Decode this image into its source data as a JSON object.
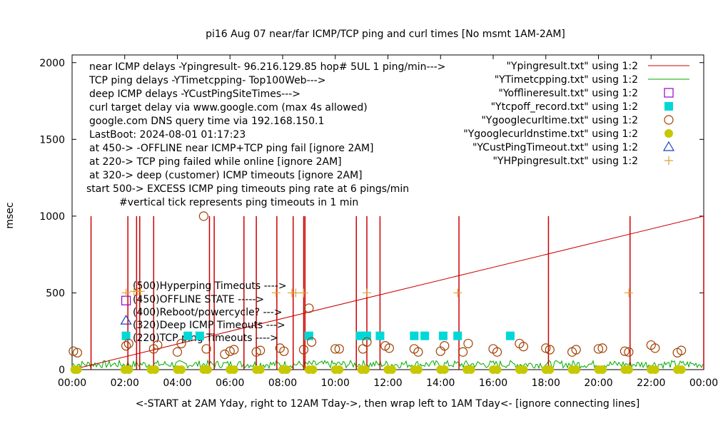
{
  "chart_data": {
    "type": "line",
    "title": "pi16 Aug 07  near/far ICMP/TCP ping and curl times [No msmt 1AM-2AM]",
    "ylabel": "msec",
    "xlabel": "<-START at 2AM Yday, right to 12AM Tday->, then wrap left to 1AM Tday<- [ignore connecting lines]",
    "xlim": [
      0,
      24
    ],
    "ylim": [
      0,
      2050
    ],
    "x_ticks": [
      {
        "v": 0,
        "label": "00:00"
      },
      {
        "v": 2,
        "label": "02:00"
      },
      {
        "v": 4,
        "label": "04:00"
      },
      {
        "v": 6,
        "label": "06:00"
      },
      {
        "v": 8,
        "label": "08:00"
      },
      {
        "v": 10,
        "label": "10:00"
      },
      {
        "v": 12,
        "label": "12:00"
      },
      {
        "v": 14,
        "label": "14:00"
      },
      {
        "v": 16,
        "label": "16:00"
      },
      {
        "v": 18,
        "label": "18:00"
      },
      {
        "v": 20,
        "label": "20:00"
      },
      {
        "v": 22,
        "label": "22:00"
      },
      {
        "v": 24,
        "label": "00:00"
      }
    ],
    "y_ticks": [
      {
        "v": 0,
        "label": "0"
      },
      {
        "v": 500,
        "label": "500"
      },
      {
        "v": 1000,
        "label": "1000"
      },
      {
        "v": 1500,
        "label": "1500"
      },
      {
        "v": 2000,
        "label": "2000"
      }
    ],
    "info_lines": [
      "near ICMP delays -Ypingresult- 96.216.129.85 hop# 5UL 1 ping/min--->",
      "TCP ping delays -YTimetcpping- Top100Web--->",
      "deep ICMP delays -YCustPingSiteTimes--->",
      "curl target delay via www.google.com (max 4s allowed)",
      "google.com DNS query time via 192.168.150.1",
      "LastBoot: 2024-08-01 01:17:23",
      "at 450-> -OFFLINE near ICMP+TCP ping fail [ignore 2AM]",
      "at 220-> TCP ping failed while online [ignore 2AM]",
      "at 320-> deep (customer) ICMP timeouts [ignore 2AM]",
      "start 500-> EXCESS ICMP ping timeouts ping rate at 6 pings/min",
      "#vertical tick represents ping timeouts in 1 min"
    ],
    "marker_labels": [
      "(500)Hyperping Timeouts ---->",
      "(450)OFFLINE STATE ----->",
      "(400)Reboot/powercycle? --->",
      "(320)Deep ICMP Timeouts --->",
      "(220)TCP ping Timeouts ---->"
    ],
    "legend_position": "top-right",
    "series": [
      {
        "name": "\"Ypingresult.txt\" using 1:2",
        "color": "#cc0000",
        "style": "line",
        "trend": [
          [
            0,
            0
          ],
          [
            24,
            1000
          ]
        ],
        "spikes": [
          [
            0.72,
            1000
          ],
          [
            2.12,
            1000
          ],
          [
            2.45,
            1000
          ],
          [
            2.57,
            1000
          ],
          [
            3.1,
            1000
          ],
          [
            5.22,
            1000
          ],
          [
            5.4,
            1000
          ],
          [
            6.53,
            1000
          ],
          [
            7.0,
            1000
          ],
          [
            7.78,
            1000
          ],
          [
            8.4,
            1000
          ],
          [
            8.8,
            1000
          ],
          [
            8.85,
            1000
          ],
          [
            10.8,
            1000
          ],
          [
            11.2,
            1000
          ],
          [
            11.7,
            1000
          ],
          [
            14.7,
            1000
          ],
          [
            18.1,
            1000
          ],
          [
            21.2,
            1000
          ],
          [
            24,
            1000
          ]
        ]
      },
      {
        "name": "\"YTimetcpping.txt\" using 1:2",
        "color": "#00aa00",
        "style": "line",
        "baseline": [
          10,
          60
        ]
      },
      {
        "name": "\"Yofflineresult.txt\" using 1:2",
        "color": "#9400d3",
        "style": "square-open",
        "points": [
          [
            2.05,
            450
          ]
        ]
      },
      {
        "name": "\"Ytcpoff_record.txt\" using 1:2",
        "color": "#00d8d8",
        "style": "square-filled",
        "points": [
          [
            2.05,
            220
          ],
          [
            4.4,
            220
          ],
          [
            4.85,
            220
          ],
          [
            9.0,
            220
          ],
          [
            10.95,
            220
          ],
          [
            11.2,
            220
          ],
          [
            11.7,
            220
          ],
          [
            13.0,
            220
          ],
          [
            13.4,
            220
          ],
          [
            14.1,
            220
          ],
          [
            14.65,
            220
          ],
          [
            16.65,
            220
          ]
        ]
      },
      {
        "name": "\"Ygooglecurltime.txt\" using 1:2",
        "color": "#a04000",
        "style": "circle-open",
        "points": [
          [
            0.05,
            120
          ],
          [
            0.2,
            110
          ],
          [
            2.05,
            155
          ],
          [
            2.15,
            170
          ],
          [
            3.1,
            135
          ],
          [
            3.25,
            160
          ],
          [
            4.0,
            115
          ],
          [
            4.15,
            170
          ],
          [
            5.0,
            1000
          ],
          [
            5.1,
            135
          ],
          [
            5.8,
            100
          ],
          [
            6.0,
            120
          ],
          [
            6.15,
            130
          ],
          [
            7.0,
            115
          ],
          [
            7.15,
            125
          ],
          [
            7.9,
            140
          ],
          [
            8.05,
            120
          ],
          [
            8.8,
            130
          ],
          [
            9.0,
            400
          ],
          [
            9.1,
            180
          ],
          [
            10.0,
            135
          ],
          [
            10.15,
            135
          ],
          [
            11.05,
            135
          ],
          [
            11.2,
            180
          ],
          [
            11.9,
            155
          ],
          [
            12.05,
            140
          ],
          [
            13.0,
            135
          ],
          [
            13.15,
            115
          ],
          [
            14.0,
            120
          ],
          [
            14.15,
            155
          ],
          [
            14.85,
            115
          ],
          [
            15.05,
            170
          ],
          [
            16.0,
            135
          ],
          [
            16.15,
            115
          ],
          [
            17.0,
            170
          ],
          [
            17.15,
            150
          ],
          [
            18.0,
            140
          ],
          [
            18.15,
            130
          ],
          [
            19.0,
            115
          ],
          [
            19.15,
            130
          ],
          [
            20.0,
            135
          ],
          [
            20.15,
            140
          ],
          [
            21.0,
            120
          ],
          [
            21.15,
            115
          ],
          [
            22.0,
            160
          ],
          [
            22.15,
            140
          ],
          [
            23.0,
            110
          ],
          [
            23.15,
            125
          ]
        ]
      },
      {
        "name": "\"Ygooglecurldnstime.txt\" using 1:2",
        "color": "#c8c800",
        "style": "circle-filled",
        "points": [
          [
            0.1,
            0
          ],
          [
            0.2,
            0
          ],
          [
            2.0,
            0
          ],
          [
            2.15,
            0
          ],
          [
            3.0,
            0
          ],
          [
            3.15,
            0
          ],
          [
            4.0,
            0
          ],
          [
            4.15,
            0
          ],
          [
            5.0,
            0
          ],
          [
            5.15,
            0
          ],
          [
            6.0,
            0
          ],
          [
            6.15,
            0
          ],
          [
            7.0,
            0
          ],
          [
            7.15,
            0
          ],
          [
            8.0,
            0
          ],
          [
            8.15,
            0
          ],
          [
            9.0,
            0
          ],
          [
            9.15,
            0
          ],
          [
            10.0,
            0
          ],
          [
            10.15,
            0
          ],
          [
            11.0,
            0
          ],
          [
            11.15,
            0
          ],
          [
            12.0,
            0
          ],
          [
            12.15,
            0
          ],
          [
            13.0,
            0
          ],
          [
            13.15,
            0
          ],
          [
            14.0,
            0
          ],
          [
            14.15,
            0
          ],
          [
            15.0,
            0
          ],
          [
            15.15,
            0
          ],
          [
            16.0,
            0
          ],
          [
            16.15,
            0
          ],
          [
            17.0,
            0
          ],
          [
            17.15,
            0
          ],
          [
            18.0,
            0
          ],
          [
            18.15,
            0
          ],
          [
            19.0,
            0
          ],
          [
            19.15,
            0
          ],
          [
            20.0,
            0
          ],
          [
            20.15,
            0
          ],
          [
            21.0,
            0
          ],
          [
            21.15,
            0
          ],
          [
            22.0,
            0
          ],
          [
            22.15,
            0
          ],
          [
            23.0,
            0
          ],
          [
            23.15,
            0
          ]
        ]
      },
      {
        "name": "\"YCustPingTimeout.txt\" using 1:2",
        "color": "#1f3fbf",
        "style": "triangle-open",
        "points": [
          [
            2.05,
            320
          ]
        ]
      },
      {
        "name": "\"YHPpingresult.txt\" using 1:2",
        "color": "#e0a030",
        "style": "plus",
        "points": [
          [
            2.05,
            500
          ],
          [
            2.35,
            510
          ],
          [
            2.5,
            510
          ],
          [
            2.6,
            510
          ],
          [
            7.75,
            500
          ],
          [
            8.35,
            500
          ],
          [
            8.5,
            500
          ],
          [
            8.8,
            500
          ],
          [
            11.2,
            500
          ],
          [
            14.65,
            500
          ],
          [
            21.15,
            500
          ]
        ]
      }
    ]
  }
}
